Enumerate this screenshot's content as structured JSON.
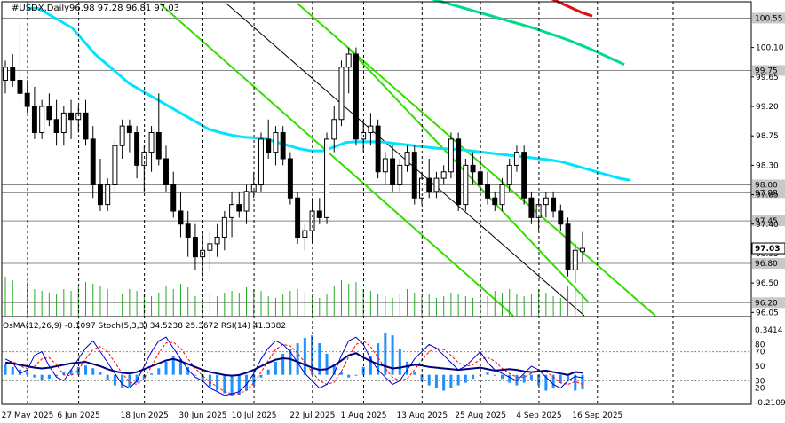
{
  "header": {
    "symbol": "#USDX,Daily",
    "ohlc": "96.98 97.28 96.81 97.03"
  },
  "indicator_header": "OsMA(12,26,9) -0.1097  Stoch(5,3,3) 34.5238 25.3672  RSI(14) 41.3382",
  "colors": {
    "bull": "#000000",
    "bear": "#000000",
    "ma_short": "#00e5ff",
    "ma_mid": "#00dd88",
    "ma_long": "#dd1111",
    "channel": "#33dd00",
    "volume": "#22aa22",
    "osma": "#1e90ff",
    "stoch_main": "#0000cc",
    "stoch_signal": "#ff0000",
    "rsi": "#000080"
  },
  "chart_data": [
    {
      "type": "candlestick",
      "title": "#USDX,Daily",
      "ylim": [
        96.0,
        100.8
      ],
      "y_ticks": [
        100.1,
        99.65,
        99.2,
        98.75,
        98.3,
        97.85,
        97.4,
        96.95,
        96.5,
        96.05
      ],
      "price_levels": [
        100.55,
        99.75,
        98.0,
        97.88,
        97.45,
        96.8,
        96.2
      ],
      "current_price": 97.03,
      "dates": [
        "27 May 2025",
        "6 Jun 2025",
        "18 Jun 2025",
        "30 Jun 2025",
        "10 Jul 2025",
        "22 Jul 2025",
        "1 Aug 2025",
        "13 Aug 2025",
        "25 Aug 2025",
        "4 Sep 2025",
        "16 Sep 2025"
      ],
      "candles": [
        [
          99.6,
          99.9,
          99.4,
          99.8
        ],
        [
          99.8,
          100.0,
          99.5,
          99.6
        ],
        [
          99.6,
          100.5,
          99.3,
          99.4
        ],
        [
          99.4,
          99.6,
          99.1,
          99.2
        ],
        [
          99.2,
          99.5,
          98.7,
          98.8
        ],
        [
          98.8,
          99.3,
          98.7,
          99.2
        ],
        [
          99.2,
          99.4,
          98.9,
          99.0
        ],
        [
          99.0,
          99.3,
          98.6,
          98.8
        ],
        [
          98.8,
          99.2,
          98.6,
          99.1
        ],
        [
          99.1,
          99.3,
          98.7,
          99.0
        ],
        [
          99.0,
          99.2,
          98.8,
          99.1
        ],
        [
          99.1,
          99.3,
          98.6,
          98.7
        ],
        [
          98.7,
          98.9,
          97.8,
          98.0
        ],
        [
          98.0,
          98.4,
          97.6,
          97.7
        ],
        [
          97.7,
          98.1,
          97.6,
          98.0
        ],
        [
          98.0,
          98.7,
          97.9,
          98.6
        ],
        [
          98.6,
          99.0,
          98.4,
          98.9
        ],
        [
          98.9,
          99.0,
          98.5,
          98.8
        ],
        [
          98.8,
          98.9,
          98.1,
          98.3
        ],
        [
          98.3,
          98.6,
          97.9,
          98.5
        ],
        [
          98.5,
          98.9,
          98.2,
          98.8
        ],
        [
          98.8,
          99.4,
          98.3,
          98.4
        ],
        [
          98.4,
          98.6,
          97.9,
          98.0
        ],
        [
          98.0,
          98.2,
          97.5,
          97.6
        ],
        [
          97.6,
          97.9,
          97.2,
          97.4
        ],
        [
          97.4,
          97.6,
          96.9,
          97.2
        ],
        [
          97.2,
          97.4,
          96.7,
          96.9
        ],
        [
          96.9,
          97.3,
          96.6,
          97.0
        ],
        [
          97.0,
          97.3,
          96.7,
          97.1
        ],
        [
          97.1,
          97.4,
          96.9,
          97.2
        ],
        [
          97.2,
          97.6,
          97.0,
          97.5
        ],
        [
          97.5,
          97.9,
          97.2,
          97.7
        ],
        [
          97.7,
          97.9,
          97.5,
          97.6
        ],
        [
          97.6,
          98.0,
          97.4,
          97.9
        ],
        [
          97.9,
          98.2,
          97.8,
          98.0
        ],
        [
          98.0,
          98.8,
          97.9,
          98.7
        ],
        [
          98.7,
          99.0,
          98.4,
          98.5
        ],
        [
          98.5,
          98.9,
          98.3,
          98.8
        ],
        [
          98.8,
          98.9,
          98.3,
          98.4
        ],
        [
          98.4,
          98.5,
          97.7,
          97.8
        ],
        [
          97.8,
          97.9,
          97.1,
          97.2
        ],
        [
          97.2,
          97.4,
          97.0,
          97.3
        ],
        [
          97.3,
          97.8,
          97.1,
          97.6
        ],
        [
          97.6,
          97.8,
          97.4,
          97.5
        ],
        [
          97.5,
          98.8,
          97.4,
          98.7
        ],
        [
          98.7,
          99.2,
          98.5,
          99.0
        ],
        [
          99.0,
          99.9,
          98.9,
          99.8
        ],
        [
          99.8,
          100.1,
          99.4,
          100.0
        ],
        [
          100.0,
          100.1,
          98.6,
          98.7
        ],
        [
          98.7,
          99.0,
          98.5,
          98.8
        ],
        [
          98.8,
          99.1,
          98.6,
          98.9
        ],
        [
          98.9,
          99.0,
          98.1,
          98.2
        ],
        [
          98.2,
          98.5,
          98.0,
          98.4
        ],
        [
          98.4,
          98.6,
          97.9,
          98.0
        ],
        [
          98.0,
          98.4,
          97.9,
          98.3
        ],
        [
          98.3,
          98.6,
          98.2,
          98.5
        ],
        [
          98.5,
          98.6,
          97.7,
          97.8
        ],
        [
          97.8,
          98.2,
          97.7,
          98.1
        ],
        [
          98.1,
          98.4,
          97.8,
          97.9
        ],
        [
          97.9,
          98.2,
          97.8,
          98.1
        ],
        [
          98.1,
          98.3,
          98.0,
          98.2
        ],
        [
          98.2,
          98.8,
          98.1,
          98.7
        ],
        [
          98.7,
          98.8,
          97.6,
          97.7
        ],
        [
          97.7,
          98.4,
          97.6,
          98.3
        ],
        [
          98.3,
          98.5,
          98.0,
          98.2
        ],
        [
          98.2,
          98.4,
          97.9,
          98.0
        ],
        [
          98.0,
          98.2,
          97.7,
          97.8
        ],
        [
          97.8,
          97.9,
          97.6,
          97.7
        ],
        [
          97.7,
          98.1,
          97.6,
          98.0
        ],
        [
          98.0,
          98.4,
          97.9,
          98.3
        ],
        [
          98.3,
          98.6,
          98.2,
          98.5
        ],
        [
          98.5,
          98.6,
          97.7,
          97.8
        ],
        [
          97.8,
          97.9,
          97.4,
          97.5
        ],
        [
          97.5,
          97.8,
          97.3,
          97.7
        ],
        [
          97.7,
          97.9,
          97.5,
          97.8
        ],
        [
          97.8,
          97.9,
          97.5,
          97.6
        ],
        [
          97.6,
          97.7,
          97.3,
          97.4
        ],
        [
          97.4,
          97.5,
          96.6,
          96.7
        ],
        [
          96.7,
          97.1,
          96.5,
          97.0
        ],
        [
          96.98,
          97.28,
          96.81,
          97.03
        ]
      ],
      "volumes": [
        44,
        40,
        36,
        38,
        30,
        28,
        26,
        24,
        30,
        28,
        34,
        38,
        36,
        33,
        30,
        27,
        24,
        30,
        28,
        25,
        22,
        26,
        33,
        30,
        36,
        32,
        22,
        20,
        24,
        22,
        26,
        28,
        26,
        32,
        30,
        28,
        22,
        20,
        24,
        28,
        30,
        26,
        22,
        20,
        24,
        34,
        40,
        36,
        38,
        30,
        28,
        24,
        22,
        20,
        24,
        30,
        26,
        22,
        24,
        20,
        22,
        26,
        24,
        22,
        20,
        24,
        22,
        28,
        26,
        30,
        24,
        22,
        24,
        30,
        26,
        22,
        20,
        34,
        30,
        22
      ],
      "ma_short": [
        100.7,
        100.7,
        100.6,
        100.5,
        100.4,
        100.2,
        100.0,
        99.85,
        99.7,
        99.55,
        99.45,
        99.35,
        99.25,
        99.15,
        99.05,
        98.95,
        98.85,
        98.8,
        98.76,
        98.73,
        98.72,
        98.7,
        98.65,
        98.6,
        98.55,
        98.52,
        98.52,
        98.58,
        98.65,
        98.66,
        98.66,
        98.66,
        98.64,
        98.62,
        98.6,
        98.58,
        98.56,
        98.55,
        98.54,
        98.52,
        98.5,
        98.48,
        98.46,
        98.44,
        98.42,
        98.4,
        98.38,
        98.35,
        98.3,
        98.25,
        98.2,
        98.15,
        98.1,
        98.07
      ],
      "ma_mid": [
        101.2,
        101.15,
        101.1,
        101.05,
        101.0,
        100.95,
        100.9,
        100.85,
        100.8,
        100.75,
        100.7,
        100.65,
        100.6,
        100.55,
        100.5,
        100.45,
        100.4,
        100.34,
        100.28,
        100.22,
        100.15,
        100.08,
        100.0,
        99.92,
        99.84
      ],
      "ma_long": [
        101.0,
        100.95,
        100.88,
        100.8,
        100.72,
        100.64,
        100.58
      ]
    },
    {
      "type": "oscillator",
      "title": "OsMA(12,26,9) Stoch(5,3,3) RSI(14)",
      "y_ticks_left": [
        "0.3414",
        "-0.2109"
      ],
      "y_ticks_right": [
        80,
        70,
        50,
        30,
        20
      ],
      "osma": [
        0.08,
        0.06,
        0.04,
        0.02,
        -0.02,
        -0.04,
        -0.03,
        -0.01,
        0.02,
        0.04,
        0.06,
        0.07,
        0.05,
        0.02,
        -0.04,
        -0.08,
        -0.1,
        -0.09,
        -0.06,
        -0.03,
        0.01,
        0.05,
        0.1,
        0.14,
        0.12,
        0.06,
        0.0,
        -0.05,
        -0.09,
        -0.12,
        -0.14,
        -0.16,
        -0.15,
        -0.12,
        -0.08,
        -0.02,
        0.04,
        0.1,
        0.16,
        0.2,
        0.24,
        0.28,
        0.3,
        0.24,
        0.16,
        0.08,
        0.02,
        -0.02,
        0.0,
        0.06,
        0.14,
        0.24,
        0.32,
        0.3,
        0.2,
        0.1,
        0.02,
        -0.05,
        -0.08,
        -0.1,
        -0.12,
        -0.1,
        -0.08,
        -0.06,
        -0.03,
        0.0,
        0.02,
        0.0,
        -0.03,
        -0.06,
        -0.08,
        -0.06,
        -0.04,
        -0.08,
        -0.12,
        -0.1,
        -0.06,
        -0.04,
        -0.12,
        -0.11
      ],
      "stoch_main": [
        60,
        55,
        40,
        45,
        65,
        70,
        50,
        35,
        30,
        45,
        60,
        75,
        85,
        70,
        55,
        40,
        25,
        20,
        30,
        50,
        70,
        85,
        90,
        75,
        60,
        45,
        35,
        30,
        20,
        15,
        10,
        12,
        15,
        25,
        40,
        60,
        75,
        85,
        80,
        70,
        55,
        40,
        30,
        20,
        25,
        40,
        65,
        85,
        90,
        80,
        60,
        45,
        35,
        25,
        30,
        45,
        60,
        70,
        80,
        75,
        65,
        55,
        45,
        50,
        60,
        70,
        55,
        45,
        40,
        35,
        30,
        40,
        50,
        45,
        35,
        25,
        20,
        30,
        36,
        34
      ],
      "stoch_signal": [
        55,
        57,
        50,
        47,
        50,
        60,
        62,
        52,
        38,
        37,
        45,
        60,
        73,
        77,
        70,
        55,
        40,
        28,
        25,
        33,
        50,
        68,
        82,
        83,
        75,
        60,
        47,
        37,
        28,
        22,
        15,
        12,
        12,
        17,
        27,
        42,
        58,
        73,
        80,
        78,
        68,
        55,
        42,
        30,
        25,
        28,
        43,
        63,
        80,
        85,
        77,
        62,
        47,
        35,
        30,
        33,
        45,
        58,
        70,
        75,
        73,
        65,
        55,
        50,
        52,
        60,
        62,
        57,
        47,
        40,
        35,
        35,
        40,
        45,
        43,
        35,
        27,
        25,
        29,
        25
      ],
      "rsi": [
        55,
        54,
        52,
        50,
        48,
        47,
        48,
        50,
        52,
        54,
        55,
        56,
        53,
        50,
        46,
        43,
        41,
        40,
        42,
        46,
        50,
        54,
        58,
        60,
        57,
        53,
        49,
        45,
        42,
        40,
        38,
        37,
        38,
        41,
        45,
        50,
        55,
        59,
        61,
        60,
        56,
        52,
        48,
        45,
        46,
        51,
        58,
        65,
        68,
        62,
        57,
        53,
        50,
        47,
        48,
        50,
        52,
        51,
        49,
        48,
        47,
        46,
        45,
        46,
        47,
        48,
        46,
        44,
        45,
        46,
        45,
        43,
        42,
        43,
        44,
        42,
        40,
        38,
        42,
        41
      ]
    }
  ]
}
